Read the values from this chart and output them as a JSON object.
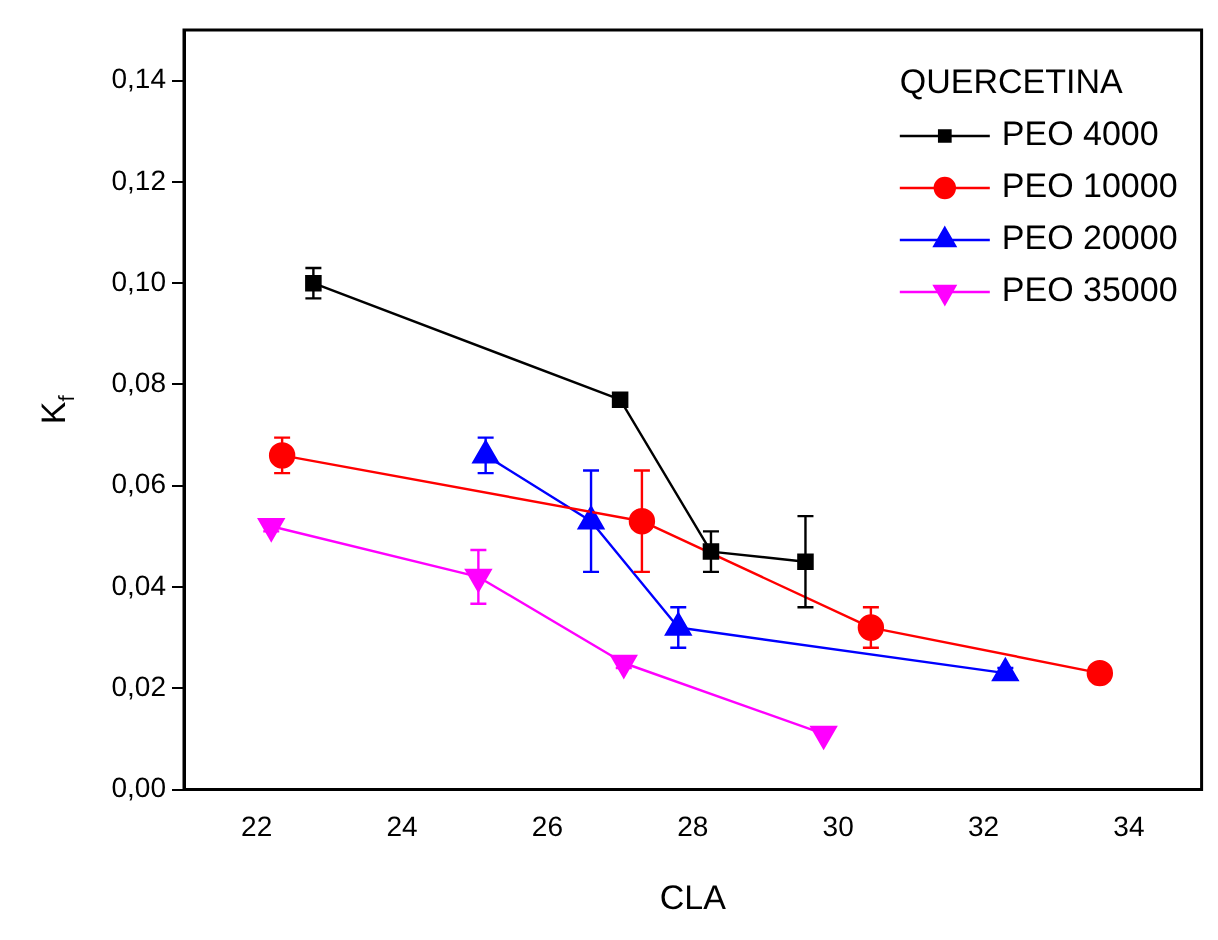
{
  "chart_data": {
    "type": "line",
    "xlabel": "CLA",
    "ylabel": "K$_{f}$",
    "legend_title": "QUERCETINA",
    "legend": "top right",
    "grid": false,
    "xlim": [
      21,
      35
    ],
    "xticks": [
      22,
      24,
      26,
      28,
      30,
      32,
      34
    ],
    "ylim": [
      0,
      0.15
    ],
    "yticks": [
      {
        "value": 0,
        "label": "0,00"
      },
      {
        "value": 0.02,
        "label": "0,02"
      },
      {
        "value": 0.04,
        "label": "0,04"
      },
      {
        "value": 0.06,
        "label": "0,06"
      },
      {
        "value": 0.08,
        "label": "0,08"
      },
      {
        "value": 0.1,
        "label": "0,10"
      },
      {
        "value": 0.12,
        "label": "0,12"
      },
      {
        "value": 0.14,
        "label": "0,14"
      }
    ],
    "series": [
      {
        "name": "PEO 4000",
        "color": "#000000",
        "marker": "square",
        "x": [
          22.78,
          27,
          28.25,
          29.55
        ],
        "values": [
          0.1,
          0.077,
          0.047,
          0.045
        ],
        "errors": [
          0.003,
          null,
          0.004,
          0.009
        ]
      },
      {
        "name": "PEO 10000",
        "color": "#ff0000",
        "marker": "circle",
        "x": [
          22.35,
          27.3,
          30.45,
          33.6
        ],
        "values": [
          0.066,
          0.053,
          0.032,
          0.023
        ],
        "errors": [
          0.0035,
          0.01,
          0.004,
          null
        ]
      },
      {
        "name": "PEO 20000",
        "color": "#0000ff",
        "marker": "triangle",
        "x": [
          25.15,
          26.6,
          27.8,
          32.3
        ],
        "values": [
          0.066,
          0.053,
          0.032,
          0.023
        ],
        "errors": [
          0.0035,
          0.01,
          0.004,
          0.001
        ]
      },
      {
        "name": "PEO 35000",
        "color": "#ff00ff",
        "marker": "triangle_down",
        "x": [
          22.2,
          25.05,
          27.05,
          29.8
        ],
        "values": [
          0.052,
          0.042,
          0.025,
          0.011
        ],
        "errors": [
          0.001,
          0.0053,
          0.001,
          null
        ]
      }
    ]
  }
}
